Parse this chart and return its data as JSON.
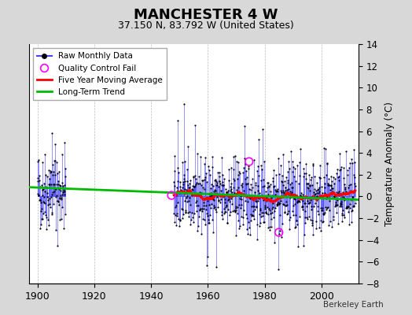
{
  "title": "MANCHESTER 4 W",
  "subtitle": "37.150 N, 83.792 W (United States)",
  "ylabel_right": "Temperature Anomaly (°C)",
  "credit": "Berkeley Earth",
  "xlim": [
    1897,
    2013
  ],
  "ylim": [
    -8,
    14
  ],
  "yticks": [
    -8,
    -6,
    -4,
    -2,
    0,
    2,
    4,
    6,
    8,
    10,
    12,
    14
  ],
  "xticks": [
    1900,
    1920,
    1940,
    1960,
    1980,
    2000
  ],
  "bg_color": "#d8d8d8",
  "plot_bg_color": "#ffffff",
  "raw_line_color": "#4444ff",
  "raw_dot_color": "#000000",
  "qc_fail_color": "#ff00ff",
  "moving_avg_color": "#ff0000",
  "trend_color": "#00bb00",
  "seed": 42
}
